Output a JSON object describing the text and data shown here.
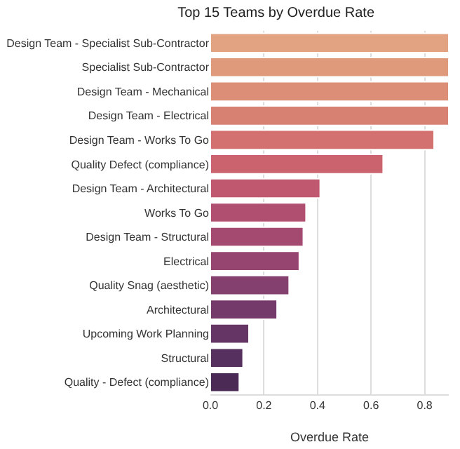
{
  "chart_data": {
    "type": "bar",
    "orientation": "horizontal",
    "title": "Top 15 Teams by Overdue Rate",
    "xlabel": "Overdue Rate",
    "categories": [
      "Design Team - Specialist Sub-Contractor",
      "Specialist Sub-Contractor",
      "Design Team - Mechanical",
      "Design Team - Electrical",
      "Design Team - Works To Go",
      "Quality Defect (compliance)",
      "Design Team - Architectural",
      "Works To Go",
      "Design Team - Structural",
      "Electrical",
      "Quality Snag (aesthetic)",
      "Architectural",
      "Upcoming Work Planning",
      "Structural",
      "Quality - Defect (compliance)"
    ],
    "values": [
      0.89,
      0.89,
      0.89,
      0.89,
      0.835,
      0.645,
      0.41,
      0.357,
      0.347,
      0.332,
      0.294,
      0.249,
      0.144,
      0.122,
      0.108
    ],
    "colors": [
      "#e2a383",
      "#df9a7b",
      "#dc8f76",
      "#d78172",
      "#d2716f",
      "#cb636e",
      "#c0586f",
      "#b14f70",
      "#a44a71",
      "#954570",
      "#84406e",
      "#733a6a",
      "#643565",
      "#56305e",
      "#4b2a56"
    ],
    "xlim": [
      0,
      0.89
    ],
    "xticks": [
      {
        "value": 0,
        "label": "0.0"
      },
      0.2,
      0.4,
      0.6,
      0.8
    ],
    "grid": "x"
  }
}
